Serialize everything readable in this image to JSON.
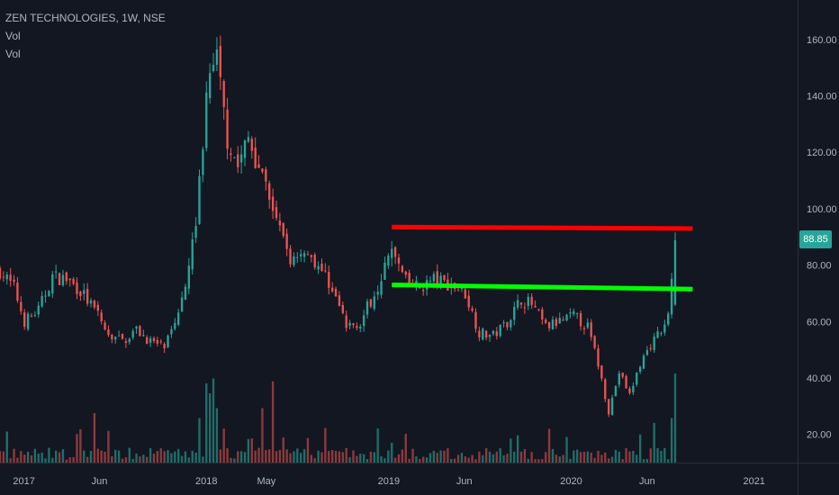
{
  "legend": {
    "symbol_line": "ZEN TECHNOLOGIES, 1W, NSE",
    "vol_line_1": "Vol",
    "vol_line_2": "Vol"
  },
  "last_price": "88.85",
  "colors": {
    "background": "#131722",
    "up": "#26a69a",
    "down": "#ef5350",
    "up_volume": "#1f6f6a",
    "down_volume": "#8f3a3c",
    "resistance_line": "#ff0000",
    "support_line": "#00ff00",
    "axis_text": "#b2b5be",
    "axis_border": "#2a2e39"
  },
  "chart_data": {
    "type": "candlestick",
    "title": "ZEN TECHNOLOGIES, 1W, NSE",
    "x_tick_labels": [
      "2017",
      "Jun",
      "2018",
      "May",
      "2019",
      "Jun",
      "2020",
      "Jun",
      "2021"
    ],
    "x_ticks": [
      "2017-01-01",
      "2017-06-01",
      "2018-01-01",
      "2018-05-01",
      "2019-01-01",
      "2019-06-01",
      "2020-01-01",
      "2020-06-01",
      "2021-01-01"
    ],
    "x_range": [
      "2016-11-14",
      "2021-03-29"
    ],
    "y_ticks": [
      20,
      40,
      60,
      80,
      100,
      120,
      140,
      160
    ],
    "y_tick_labels": [
      "20.00",
      "40.00",
      "60.00",
      "80.00",
      "100.00",
      "120.00",
      "140.00",
      "160.00"
    ],
    "y_range": [
      10,
      174
    ],
    "last_price": 88.85,
    "price_path": [
      [
        "2016-11-14",
        78
      ],
      [
        "2016-12-12",
        72
      ],
      [
        "2017-01-02",
        60
      ],
      [
        "2017-01-30",
        64
      ],
      [
        "2017-02-27",
        76
      ],
      [
        "2017-03-27",
        75
      ],
      [
        "2017-04-24",
        71
      ],
      [
        "2017-05-22",
        64
      ],
      [
        "2017-06-19",
        55
      ],
      [
        "2017-07-17",
        53
      ],
      [
        "2017-08-14",
        57
      ],
      [
        "2017-09-11",
        53
      ],
      [
        "2017-10-09",
        51
      ],
      [
        "2017-10-30",
        58
      ],
      [
        "2017-11-20",
        75
      ],
      [
        "2017-12-11",
        95
      ],
      [
        "2018-01-01",
        140
      ],
      [
        "2018-01-22",
        152
      ],
      [
        "2018-02-12",
        125
      ],
      [
        "2018-03-05",
        115
      ],
      [
        "2018-03-26",
        125
      ],
      [
        "2018-04-23",
        112
      ],
      [
        "2018-05-21",
        95
      ],
      [
        "2018-06-18",
        82
      ],
      [
        "2018-07-16",
        86
      ],
      [
        "2018-08-13",
        80
      ],
      [
        "2018-09-10",
        72
      ],
      [
        "2018-10-08",
        58
      ],
      [
        "2018-11-05",
        60
      ],
      [
        "2018-12-03",
        70
      ],
      [
        "2019-01-07",
        85
      ],
      [
        "2019-02-04",
        74
      ],
      [
        "2019-03-04",
        72
      ],
      [
        "2019-04-01",
        75
      ],
      [
        "2019-05-06",
        73
      ],
      [
        "2019-06-03",
        70
      ],
      [
        "2019-07-01",
        56
      ],
      [
        "2019-07-29",
        55
      ],
      [
        "2019-08-26",
        60
      ],
      [
        "2019-09-23",
        68
      ],
      [
        "2019-10-14",
        66
      ],
      [
        "2019-11-11",
        58
      ],
      [
        "2019-12-09",
        60
      ],
      [
        "2020-01-06",
        62
      ],
      [
        "2020-02-03",
        58
      ],
      [
        "2020-02-24",
        45
      ],
      [
        "2020-03-16",
        28
      ],
      [
        "2020-04-06",
        42
      ],
      [
        "2020-04-27",
        34
      ],
      [
        "2020-05-18",
        45
      ],
      [
        "2020-06-08",
        52
      ],
      [
        "2020-06-29",
        56
      ],
      [
        "2020-07-13",
        63
      ],
      [
        "2020-07-27",
        88.85
      ]
    ],
    "annotations": [
      {
        "label": "resistance",
        "color": "#ff0000",
        "start": [
          "2019-01-07",
          93.5
        ],
        "end": [
          "2020-08-31",
          93
        ]
      },
      {
        "label": "support",
        "color": "#00ff00",
        "start": [
          "2019-01-07",
          73
        ],
        "end": [
          "2020-08-31",
          71.5
        ]
      }
    ],
    "volume_spikes": [
      [
        "2017-05-22",
        0.5
      ],
      [
        "2017-12-18",
        0.45
      ],
      [
        "2018-01-01",
        0.8
      ],
      [
        "2018-01-08",
        0.7
      ],
      [
        "2018-01-15",
        0.85
      ],
      [
        "2018-01-22",
        0.55
      ],
      [
        "2018-04-23",
        0.55
      ],
      [
        "2018-05-14",
        0.82
      ],
      [
        "2019-01-07",
        0.2
      ],
      [
        "2020-06-15",
        0.4
      ],
      [
        "2020-07-27",
        0.9
      ],
      [
        "2020-08-03",
        1.0
      ],
      [
        "2020-07-20",
        0.45
      ]
    ],
    "grid": false,
    "legend_position": "top-left"
  }
}
